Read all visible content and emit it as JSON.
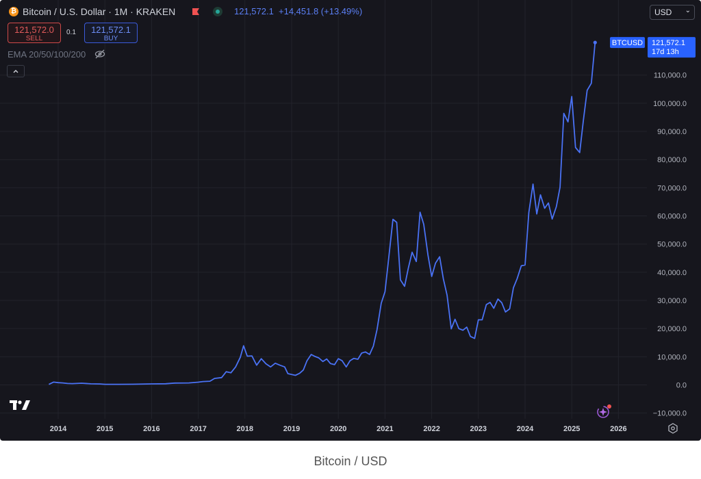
{
  "header": {
    "coin_glyph": "₿",
    "title": "Bitcoin / U.S. Dollar · 1M · KRAKEN",
    "price": "121,572.1",
    "change": "+14,451.8 (+13.49%)",
    "flag_icon": "flag-icon",
    "live_icon": "live-dot-icon"
  },
  "trade": {
    "sell_price": "121,572.0",
    "sell_label": "SELL",
    "spread": "0.1",
    "buy_price": "121,572.1",
    "buy_label": "BUY"
  },
  "indicator": {
    "label": "EMA 20/50/100/200",
    "icon": "eye-off-icon"
  },
  "currency_select": {
    "value": "USD",
    "chevron": "⌄"
  },
  "caption": "Bitcoin / USD",
  "colors": {
    "background": "#16161d",
    "line": "#4a72f5",
    "label_bg": "#2962ff",
    "grid": "#22232b",
    "axis_text": "#b2b5be"
  },
  "chart_data": {
    "type": "line",
    "series": [
      {
        "name": "BTCUSD",
        "points": [
          [
            2013.8,
            200
          ],
          [
            2013.9,
            1000
          ],
          [
            2014.0,
            800
          ],
          [
            2014.1,
            700
          ],
          [
            2014.2,
            500
          ],
          [
            2014.3,
            450
          ],
          [
            2014.5,
            600
          ],
          [
            2014.7,
            400
          ],
          [
            2014.9,
            350
          ],
          [
            2015.0,
            220
          ],
          [
            2015.3,
            230
          ],
          [
            2015.6,
            250
          ],
          [
            2015.9,
            350
          ],
          [
            2016.0,
            370
          ],
          [
            2016.3,
            420
          ],
          [
            2016.5,
            650
          ],
          [
            2016.8,
            700
          ],
          [
            2017.0,
            960
          ],
          [
            2017.1,
            1200
          ],
          [
            2017.25,
            1300
          ],
          [
            2017.35,
            2300
          ],
          [
            2017.5,
            2600
          ],
          [
            2017.6,
            4700
          ],
          [
            2017.7,
            4300
          ],
          [
            2017.8,
            6400
          ],
          [
            2017.9,
            9800
          ],
          [
            2017.97,
            13900
          ],
          [
            2018.05,
            10200
          ],
          [
            2018.15,
            10300
          ],
          [
            2018.25,
            7000
          ],
          [
            2018.35,
            9300
          ],
          [
            2018.45,
            7500
          ],
          [
            2018.55,
            6400
          ],
          [
            2018.65,
            7700
          ],
          [
            2018.75,
            7000
          ],
          [
            2018.85,
            6400
          ],
          [
            2018.92,
            4000
          ],
          [
            2019.0,
            3700
          ],
          [
            2019.08,
            3400
          ],
          [
            2019.17,
            4100
          ],
          [
            2019.25,
            5300
          ],
          [
            2019.33,
            8600
          ],
          [
            2019.42,
            10800
          ],
          [
            2019.5,
            10100
          ],
          [
            2019.58,
            9600
          ],
          [
            2019.67,
            8300
          ],
          [
            2019.75,
            9200
          ],
          [
            2019.83,
            7600
          ],
          [
            2019.92,
            7200
          ],
          [
            2020.0,
            9300
          ],
          [
            2020.08,
            8600
          ],
          [
            2020.17,
            6400
          ],
          [
            2020.25,
            8600
          ],
          [
            2020.33,
            9400
          ],
          [
            2020.42,
            9100
          ],
          [
            2020.5,
            11300
          ],
          [
            2020.58,
            11700
          ],
          [
            2020.67,
            10800
          ],
          [
            2020.75,
            13800
          ],
          [
            2020.83,
            19700
          ],
          [
            2020.92,
            29000
          ],
          [
            2021.0,
            33100
          ],
          [
            2021.08,
            45200
          ],
          [
            2021.17,
            58800
          ],
          [
            2021.25,
            57700
          ],
          [
            2021.33,
            37300
          ],
          [
            2021.42,
            35000
          ],
          [
            2021.5,
            41500
          ],
          [
            2021.58,
            47100
          ],
          [
            2021.67,
            43800
          ],
          [
            2021.75,
            61300
          ],
          [
            2021.83,
            57000
          ],
          [
            2021.92,
            46200
          ],
          [
            2022.0,
            38500
          ],
          [
            2022.08,
            43200
          ],
          [
            2022.17,
            45500
          ],
          [
            2022.25,
            37700
          ],
          [
            2022.33,
            31800
          ],
          [
            2022.42,
            19900
          ],
          [
            2022.5,
            23300
          ],
          [
            2022.58,
            20000
          ],
          [
            2022.67,
            19400
          ],
          [
            2022.75,
            20500
          ],
          [
            2022.83,
            17200
          ],
          [
            2022.92,
            16500
          ],
          [
            2023.0,
            23100
          ],
          [
            2023.08,
            23100
          ],
          [
            2023.17,
            28500
          ],
          [
            2023.25,
            29300
          ],
          [
            2023.33,
            27200
          ],
          [
            2023.42,
            30500
          ],
          [
            2023.5,
            29200
          ],
          [
            2023.58,
            25900
          ],
          [
            2023.67,
            27000
          ],
          [
            2023.75,
            34500
          ],
          [
            2023.83,
            37700
          ],
          [
            2023.92,
            42300
          ],
          [
            2024.0,
            42600
          ],
          [
            2024.08,
            61200
          ],
          [
            2024.17,
            71300
          ],
          [
            2024.25,
            60700
          ],
          [
            2024.33,
            67500
          ],
          [
            2024.42,
            62700
          ],
          [
            2024.5,
            64600
          ],
          [
            2024.58,
            58900
          ],
          [
            2024.67,
            63300
          ],
          [
            2024.75,
            70200
          ],
          [
            2024.83,
            96400
          ],
          [
            2024.92,
            93400
          ],
          [
            2025.0,
            102400
          ],
          [
            2025.08,
            84300
          ],
          [
            2025.17,
            82500
          ],
          [
            2025.25,
            94200
          ],
          [
            2025.33,
            104600
          ],
          [
            2025.42,
            107100
          ],
          [
            2025.5,
            121572.1
          ]
        ]
      }
    ],
    "x_ticks": [
      2014,
      2015,
      2016,
      2017,
      2018,
      2019,
      2020,
      2021,
      2022,
      2023,
      2024,
      2025,
      2026
    ],
    "y_ticks": [
      -10000,
      0,
      10000,
      20000,
      30000,
      40000,
      50000,
      60000,
      70000,
      80000,
      90000,
      100000,
      110000
    ],
    "y_tick_labels": [
      "−10,000.0",
      "0.0",
      "10,000.0",
      "20,000.0",
      "30,000.0",
      "40,000.0",
      "50,000.0",
      "60,000.0",
      "70,000.0",
      "80,000.0",
      "90,000.0",
      "100,000.0",
      "110,000.0"
    ],
    "xlim": [
      2013.2,
      2026.45
    ],
    "ylim": [
      -12000,
      126000
    ],
    "last_value": 121572.1,
    "last_label_symbol": "BTCUSD",
    "last_label_price": "121,572.1",
    "last_label_countdown": "17d 13h",
    "grid": true,
    "legend": "none"
  }
}
